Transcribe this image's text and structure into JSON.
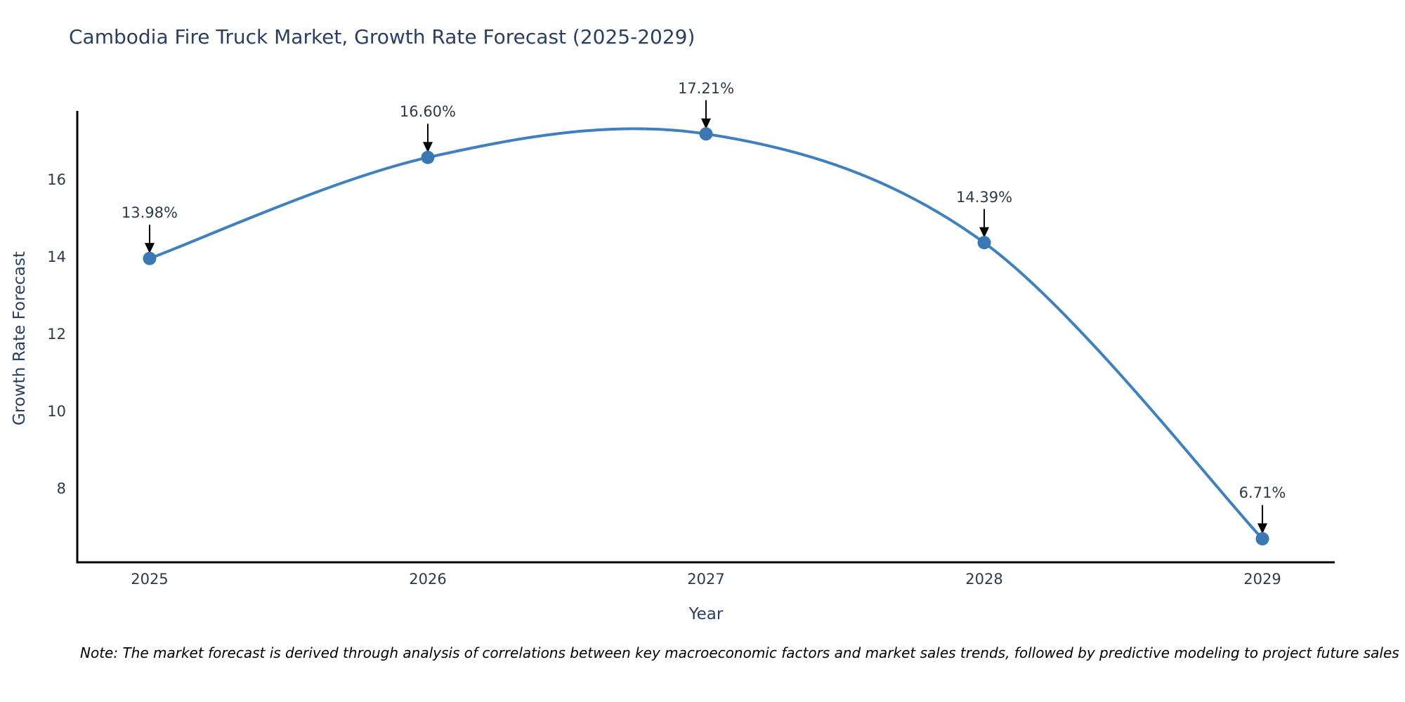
{
  "title": "Cambodia Fire Truck Market, Growth Rate Forecast (2025-2029)",
  "note": "Note: The market forecast is derived through analysis of correlations between key macroeconomic factors and market sales trends, followed by predictive modeling to project future sales",
  "chart_data": {
    "type": "line",
    "title": "Cambodia Fire Truck Market, Growth Rate Forecast (2025-2029)",
    "xlabel": "Year",
    "ylabel": "Growth Rate Forecast",
    "x": [
      2025,
      2026,
      2027,
      2028,
      2029
    ],
    "values": [
      13.98,
      16.6,
      17.21,
      14.39,
      6.71
    ],
    "point_labels": [
      "13.98%",
      "16.60%",
      "17.21%",
      "14.39%",
      "6.71%"
    ],
    "xticks": [
      "2025",
      "2026",
      "2027",
      "2028",
      "2029"
    ],
    "yticks": [
      8,
      10,
      12,
      14,
      16
    ],
    "xlim": [
      2024.74,
      2029.26
    ],
    "ylim": [
      6.1,
      17.77
    ],
    "grid": false,
    "legend": "none",
    "line_shape": "spline",
    "line_color": "#3f80bd",
    "marker_color": "#3a78b3",
    "arrow_color": "#000000",
    "axis_color": "#000000"
  }
}
